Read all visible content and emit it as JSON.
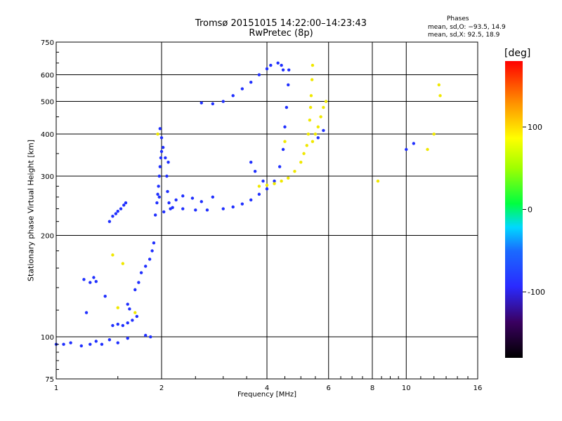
{
  "chart_data": {
    "type": "scatter",
    "title": "Tromsø 20151015 14:22:00–14:23:43",
    "subtitle": "RwPretec (8p)",
    "phase_header": "Phases",
    "phase_o": "mean, sd,O: −93.5, 14.9",
    "phase_x": "mean, sd,X:  92.5, 18.9",
    "xlabel": "Frequency [MHz]",
    "ylabel": "Stationary phase Virtual Height [km]",
    "x_scale": "log",
    "y_scale": "log",
    "xlim": [
      1,
      16
    ],
    "ylim": [
      75,
      750
    ],
    "x_ticks": [
      1,
      2,
      4,
      6,
      8,
      10,
      16
    ],
    "y_ticks": [
      75,
      100,
      200,
      300,
      400,
      500,
      600,
      750
    ],
    "grid": true,
    "colorbar": {
      "label": "[deg]",
      "range": [
        -180,
        180
      ],
      "ticks": [
        100,
        0,
        -100
      ]
    },
    "series": [
      {
        "points": [
          [
            1.0,
            95
          ],
          [
            1.05,
            95
          ],
          [
            1.1,
            96
          ],
          [
            1.18,
            94
          ],
          [
            1.25,
            95
          ],
          [
            1.3,
            97
          ],
          [
            1.35,
            95
          ],
          [
            1.42,
            98
          ],
          [
            1.5,
            96
          ],
          [
            1.6,
            99
          ],
          [
            1.8,
            101
          ],
          [
            1.86,
            100
          ],
          [
            1.2,
            148
          ],
          [
            1.25,
            145
          ],
          [
            1.28,
            150
          ],
          [
            1.3,
            146
          ],
          [
            1.22,
            118
          ],
          [
            1.38,
            132
          ],
          [
            1.45,
            108
          ],
          [
            1.5,
            109
          ],
          [
            1.55,
            108
          ],
          [
            1.6,
            110
          ],
          [
            1.65,
            112
          ],
          [
            1.7,
            115
          ],
          [
            1.6,
            125
          ],
          [
            1.68,
            138
          ],
          [
            1.72,
            145
          ],
          [
            1.75,
            155
          ],
          [
            1.8,
            162
          ],
          [
            1.85,
            170
          ],
          [
            1.88,
            180
          ],
          [
            1.9,
            190
          ],
          [
            1.62,
            121
          ],
          [
            1.42,
            220
          ],
          [
            1.45,
            228
          ],
          [
            1.48,
            232
          ],
          [
            1.5,
            236
          ],
          [
            1.53,
            240
          ],
          [
            1.56,
            246
          ],
          [
            1.58,
            250
          ],
          [
            1.92,
            230
          ],
          [
            1.94,
            250
          ],
          [
            1.95,
            265
          ],
          [
            1.96,
            280
          ],
          [
            1.97,
            300
          ],
          [
            1.98,
            320
          ],
          [
            1.99,
            340
          ],
          [
            2.0,
            355
          ],
          [
            2.02,
            365
          ],
          [
            2.05,
            340
          ],
          [
            2.07,
            300
          ],
          [
            2.08,
            270
          ],
          [
            2.1,
            250
          ],
          [
            2.12,
            240
          ],
          [
            2.0,
            390
          ],
          [
            1.98,
            415
          ],
          [
            2.03,
            235
          ],
          [
            2.09,
            330
          ],
          [
            1.97,
            260
          ],
          [
            2.15,
            242
          ],
          [
            2.3,
            240
          ],
          [
            2.5,
            238
          ],
          [
            2.7,
            238
          ],
          [
            3.0,
            240
          ],
          [
            3.2,
            243
          ],
          [
            3.4,
            248
          ],
          [
            3.6,
            255
          ],
          [
            3.8,
            265
          ],
          [
            4.0,
            275
          ],
          [
            4.2,
            290
          ],
          [
            4.35,
            320
          ],
          [
            4.45,
            360
          ],
          [
            4.5,
            420
          ],
          [
            4.55,
            480
          ],
          [
            4.6,
            560
          ],
          [
            4.62,
            620
          ],
          [
            2.2,
            255
          ],
          [
            2.3,
            262
          ],
          [
            2.45,
            258
          ],
          [
            2.6,
            252
          ],
          [
            2.8,
            260
          ],
          [
            2.6,
            495
          ],
          [
            2.8,
            492
          ],
          [
            3.0,
            500
          ],
          [
            3.2,
            520
          ],
          [
            3.4,
            545
          ],
          [
            3.6,
            570
          ],
          [
            3.8,
            600
          ],
          [
            4.0,
            625
          ],
          [
            4.1,
            640
          ],
          [
            4.3,
            650
          ],
          [
            4.4,
            640
          ],
          [
            4.45,
            620
          ],
          [
            3.6,
            330
          ],
          [
            3.7,
            310
          ],
          [
            3.9,
            290
          ],
          [
            5.6,
            390
          ],
          [
            5.8,
            410
          ],
          [
            10.0,
            360
          ],
          [
            10.5,
            375
          ]
        ]
      },
      {
        "points": [
          [
            3.8,
            280
          ],
          [
            4.0,
            282
          ],
          [
            4.2,
            285
          ],
          [
            4.4,
            290
          ],
          [
            4.6,
            296
          ],
          [
            4.8,
            310
          ],
          [
            5.0,
            330
          ],
          [
            5.1,
            350
          ],
          [
            5.2,
            370
          ],
          [
            5.25,
            400
          ],
          [
            5.3,
            440
          ],
          [
            5.33,
            480
          ],
          [
            5.35,
            520
          ],
          [
            5.38,
            580
          ],
          [
            5.4,
            640
          ],
          [
            5.4,
            380
          ],
          [
            5.5,
            400
          ],
          [
            5.6,
            420
          ],
          [
            5.7,
            450
          ],
          [
            5.8,
            480
          ],
          [
            5.9,
            500
          ],
          [
            1.45,
            175
          ],
          [
            1.55,
            165
          ],
          [
            1.5,
            122
          ],
          [
            1.68,
            118
          ],
          [
            1.95,
            400
          ],
          [
            4.5,
            380
          ],
          [
            11.5,
            360
          ],
          [
            12.0,
            400
          ],
          [
            12.5,
            520
          ],
          [
            12.4,
            560
          ],
          [
            8.3,
            290
          ]
        ]
      }
    ]
  }
}
